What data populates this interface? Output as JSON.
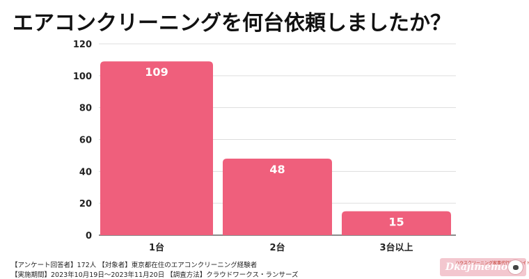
{
  "title": "エアコンクリーニングを何台依頼しましたか？",
  "chart_data": {
    "type": "bar",
    "categories": [
      "1台",
      "2台",
      "3台以上"
    ],
    "values": [
      109,
      48,
      15
    ],
    "ylim": [
      0,
      120
    ],
    "yticks": [
      0,
      20,
      40,
      60,
      80,
      100,
      120
    ],
    "grid": true,
    "bar_color": "#ef5f7c",
    "label_color": "#ffffff"
  },
  "footnotes": {
    "line1": "【アンケート回答者】172人 【対象者】東京都在住のエアコンクリーニング経験者",
    "line2": "【実施期間】2023年10月19日〜2023年11月20日 【調査方法】クラウドワークス・ランサーズ"
  },
  "logo": {
    "tagline": "ハウスクリーニング家事代行情報サイト",
    "name": "Dkajimemo",
    "icon": "sheep-icon"
  }
}
